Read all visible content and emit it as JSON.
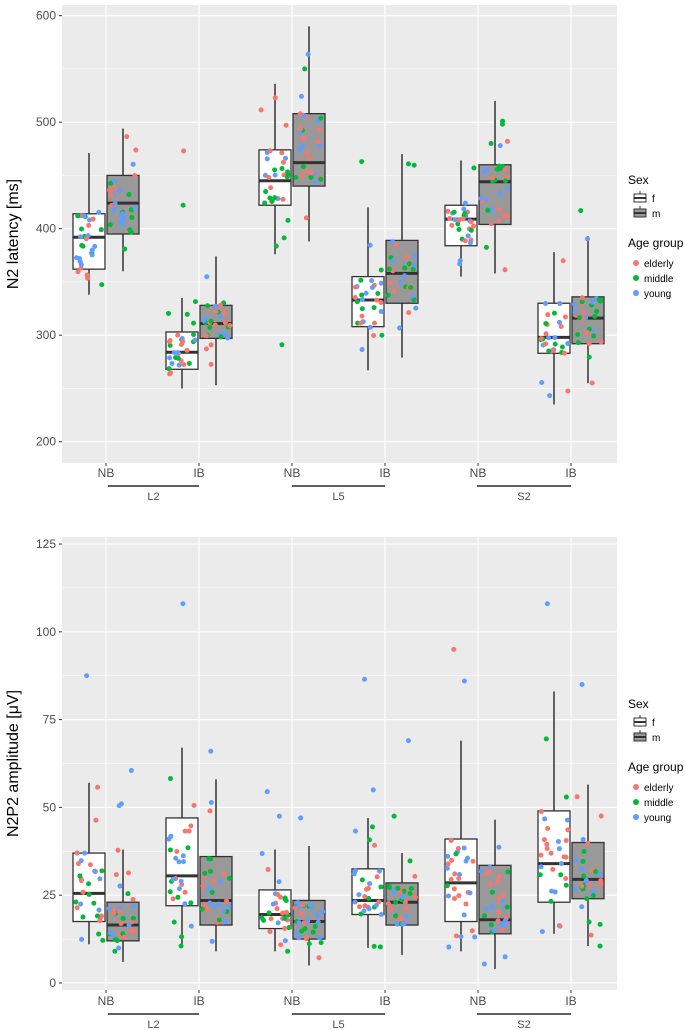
{
  "legend": {
    "sex_title": "Sex",
    "sex_levels": [
      {
        "label": "f",
        "fill": "#ffffff"
      },
      {
        "label": "m",
        "fill": "#999999"
      }
    ],
    "age_title": "Age group",
    "age_levels": [
      {
        "label": "elderly",
        "color": "#F8766D"
      },
      {
        "label": "middle",
        "color": "#00BA38"
      },
      {
        "label": "young",
        "color": "#619CFF"
      }
    ]
  },
  "chart_data": [
    {
      "type": "boxplot",
      "ylabel": "N2 latency [ms]",
      "ylim": [
        180,
        610
      ],
      "yticks": [
        200,
        300,
        400,
        500,
        600
      ],
      "grid": true,
      "legend_position": "right",
      "categories": [
        "NB",
        "IB",
        "NB",
        "IB",
        "NB",
        "IB"
      ],
      "groups": [
        "L2",
        "L5",
        "S2"
      ],
      "boxes": [
        {
          "site": "L2",
          "stim": "NB",
          "sex": "f",
          "whisker_low": 338,
          "q1": 362,
          "median": 392,
          "q3": 414,
          "whisker_high": 471
        },
        {
          "site": "L2",
          "stim": "NB",
          "sex": "m",
          "whisker_low": 360,
          "q1": 395,
          "median": 424,
          "q3": 450,
          "whisker_high": 494
        },
        {
          "site": "L2",
          "stim": "IB",
          "sex": "f",
          "whisker_low": 250,
          "q1": 268,
          "median": 284,
          "q3": 303,
          "whisker_high": 335
        },
        {
          "site": "L2",
          "stim": "IB",
          "sex": "m",
          "whisker_low": 253,
          "q1": 297,
          "median": 311,
          "q3": 328,
          "whisker_high": 374
        },
        {
          "site": "L5",
          "stim": "NB",
          "sex": "f",
          "whisker_low": 376,
          "q1": 422,
          "median": 445,
          "q3": 474,
          "whisker_high": 536
        },
        {
          "site": "L5",
          "stim": "NB",
          "sex": "m",
          "whisker_low": 388,
          "q1": 440,
          "median": 462,
          "q3": 508,
          "whisker_high": 590
        },
        {
          "site": "L5",
          "stim": "IB",
          "sex": "f",
          "whisker_low": 267,
          "q1": 308,
          "median": 333,
          "q3": 355,
          "whisker_high": 420
        },
        {
          "site": "L5",
          "stim": "IB",
          "sex": "m",
          "whisker_low": 279,
          "q1": 330,
          "median": 358,
          "q3": 389,
          "whisker_high": 470
        },
        {
          "site": "S2",
          "stim": "NB",
          "sex": "f",
          "whisker_low": 355,
          "q1": 384,
          "median": 409,
          "q3": 422,
          "whisker_high": 464
        },
        {
          "site": "S2",
          "stim": "NB",
          "sex": "m",
          "whisker_low": 358,
          "q1": 404,
          "median": 444,
          "q3": 460,
          "whisker_high": 520
        },
        {
          "site": "S2",
          "stim": "IB",
          "sex": "f",
          "whisker_low": 235,
          "q1": 283,
          "median": 298,
          "q3": 330,
          "whisker_high": 378
        },
        {
          "site": "S2",
          "stim": "IB",
          "sex": "m",
          "whisker_low": 255,
          "q1": 292,
          "median": 316,
          "q3": 336,
          "whisker_high": 393
        }
      ],
      "outliers": [
        {
          "box": 3,
          "value": 422,
          "age": "middle"
        },
        {
          "box": 3,
          "value": 473,
          "age": "elderly"
        },
        {
          "box": 5,
          "value": 291,
          "age": "middle"
        },
        {
          "box": 7,
          "value": 463,
          "age": "middle"
        },
        {
          "box": 10,
          "value": 501,
          "age": "middle"
        },
        {
          "box": 10,
          "value": 498,
          "age": "middle"
        },
        {
          "box": 12,
          "value": 417,
          "age": "middle"
        }
      ]
    },
    {
      "type": "boxplot",
      "ylabel": "N2P2 amplitude [μV]",
      "ylim": [
        -2,
        127
      ],
      "yticks": [
        0,
        25,
        50,
        75,
        100,
        125
      ],
      "grid": true,
      "legend_position": "right",
      "categories": [
        "NB",
        "IB",
        "NB",
        "IB",
        "NB",
        "IB"
      ],
      "groups": [
        "L2",
        "L5",
        "S2"
      ],
      "boxes": [
        {
          "site": "L2",
          "stim": "NB",
          "sex": "f",
          "whisker_low": 11,
          "q1": 17.5,
          "median": 25.5,
          "q3": 37,
          "whisker_high": 57
        },
        {
          "site": "L2",
          "stim": "NB",
          "sex": "m",
          "whisker_low": 6,
          "q1": 12,
          "median": 16.5,
          "q3": 23,
          "whisker_high": 38
        },
        {
          "site": "L2",
          "stim": "IB",
          "sex": "f",
          "whisker_low": 10.5,
          "q1": 22,
          "median": 30.5,
          "q3": 47,
          "whisker_high": 67
        },
        {
          "site": "L2",
          "stim": "IB",
          "sex": "m",
          "whisker_low": 9,
          "q1": 16.5,
          "median": 23.5,
          "q3": 36,
          "whisker_high": 58
        },
        {
          "site": "L5",
          "stim": "NB",
          "sex": "f",
          "whisker_low": 9,
          "q1": 15.5,
          "median": 19.5,
          "q3": 26.5,
          "whisker_high": 38
        },
        {
          "site": "L5",
          "stim": "NB",
          "sex": "m",
          "whisker_low": 5,
          "q1": 12.5,
          "median": 17.5,
          "q3": 23.5,
          "whisker_high": 39
        },
        {
          "site": "L5",
          "stim": "IB",
          "sex": "f",
          "whisker_low": 10,
          "q1": 19.5,
          "median": 23.5,
          "q3": 32.5,
          "whisker_high": 47
        },
        {
          "site": "L5",
          "stim": "IB",
          "sex": "m",
          "whisker_low": 8,
          "q1": 16.5,
          "median": 23,
          "q3": 28.5,
          "whisker_high": 37
        },
        {
          "site": "S2",
          "stim": "NB",
          "sex": "f",
          "whisker_low": 9,
          "q1": 17.5,
          "median": 28.5,
          "q3": 41,
          "whisker_high": 69
        },
        {
          "site": "S2",
          "stim": "NB",
          "sex": "m",
          "whisker_low": 4,
          "q1": 14,
          "median": 18,
          "q3": 33.5,
          "whisker_high": 46.5
        },
        {
          "site": "S2",
          "stim": "IB",
          "sex": "f",
          "whisker_low": 14,
          "q1": 23,
          "median": 34,
          "q3": 49,
          "whisker_high": 83
        },
        {
          "site": "S2",
          "stim": "IB",
          "sex": "m",
          "whisker_low": 10.5,
          "q1": 24,
          "median": 29.5,
          "q3": 40,
          "whisker_high": 56.5
        }
      ],
      "outliers": [
        {
          "box": 1,
          "value": 87.5,
          "age": "young"
        },
        {
          "box": 2,
          "value": 60.5,
          "age": "young"
        },
        {
          "box": 2,
          "value": 51,
          "age": "young"
        },
        {
          "box": 2,
          "value": 50.5,
          "age": "young"
        },
        {
          "box": 3,
          "value": 108,
          "age": "young"
        },
        {
          "box": 4,
          "value": 66,
          "age": "young"
        },
        {
          "box": 5,
          "value": 54.5,
          "age": "young"
        },
        {
          "box": 5,
          "value": 47.5,
          "age": "young"
        },
        {
          "box": 6,
          "value": 47,
          "age": "young"
        },
        {
          "box": 7,
          "value": 86.5,
          "age": "young"
        },
        {
          "box": 7,
          "value": 55,
          "age": "young"
        },
        {
          "box": 8,
          "value": 69,
          "age": "young"
        },
        {
          "box": 8,
          "value": 47.5,
          "age": "middle"
        },
        {
          "box": 9,
          "value": 95,
          "age": "elderly"
        },
        {
          "box": 9,
          "value": 86,
          "age": "young"
        },
        {
          "box": 11,
          "value": 108,
          "age": "young"
        },
        {
          "box": 12,
          "value": 85,
          "age": "young"
        }
      ]
    }
  ]
}
